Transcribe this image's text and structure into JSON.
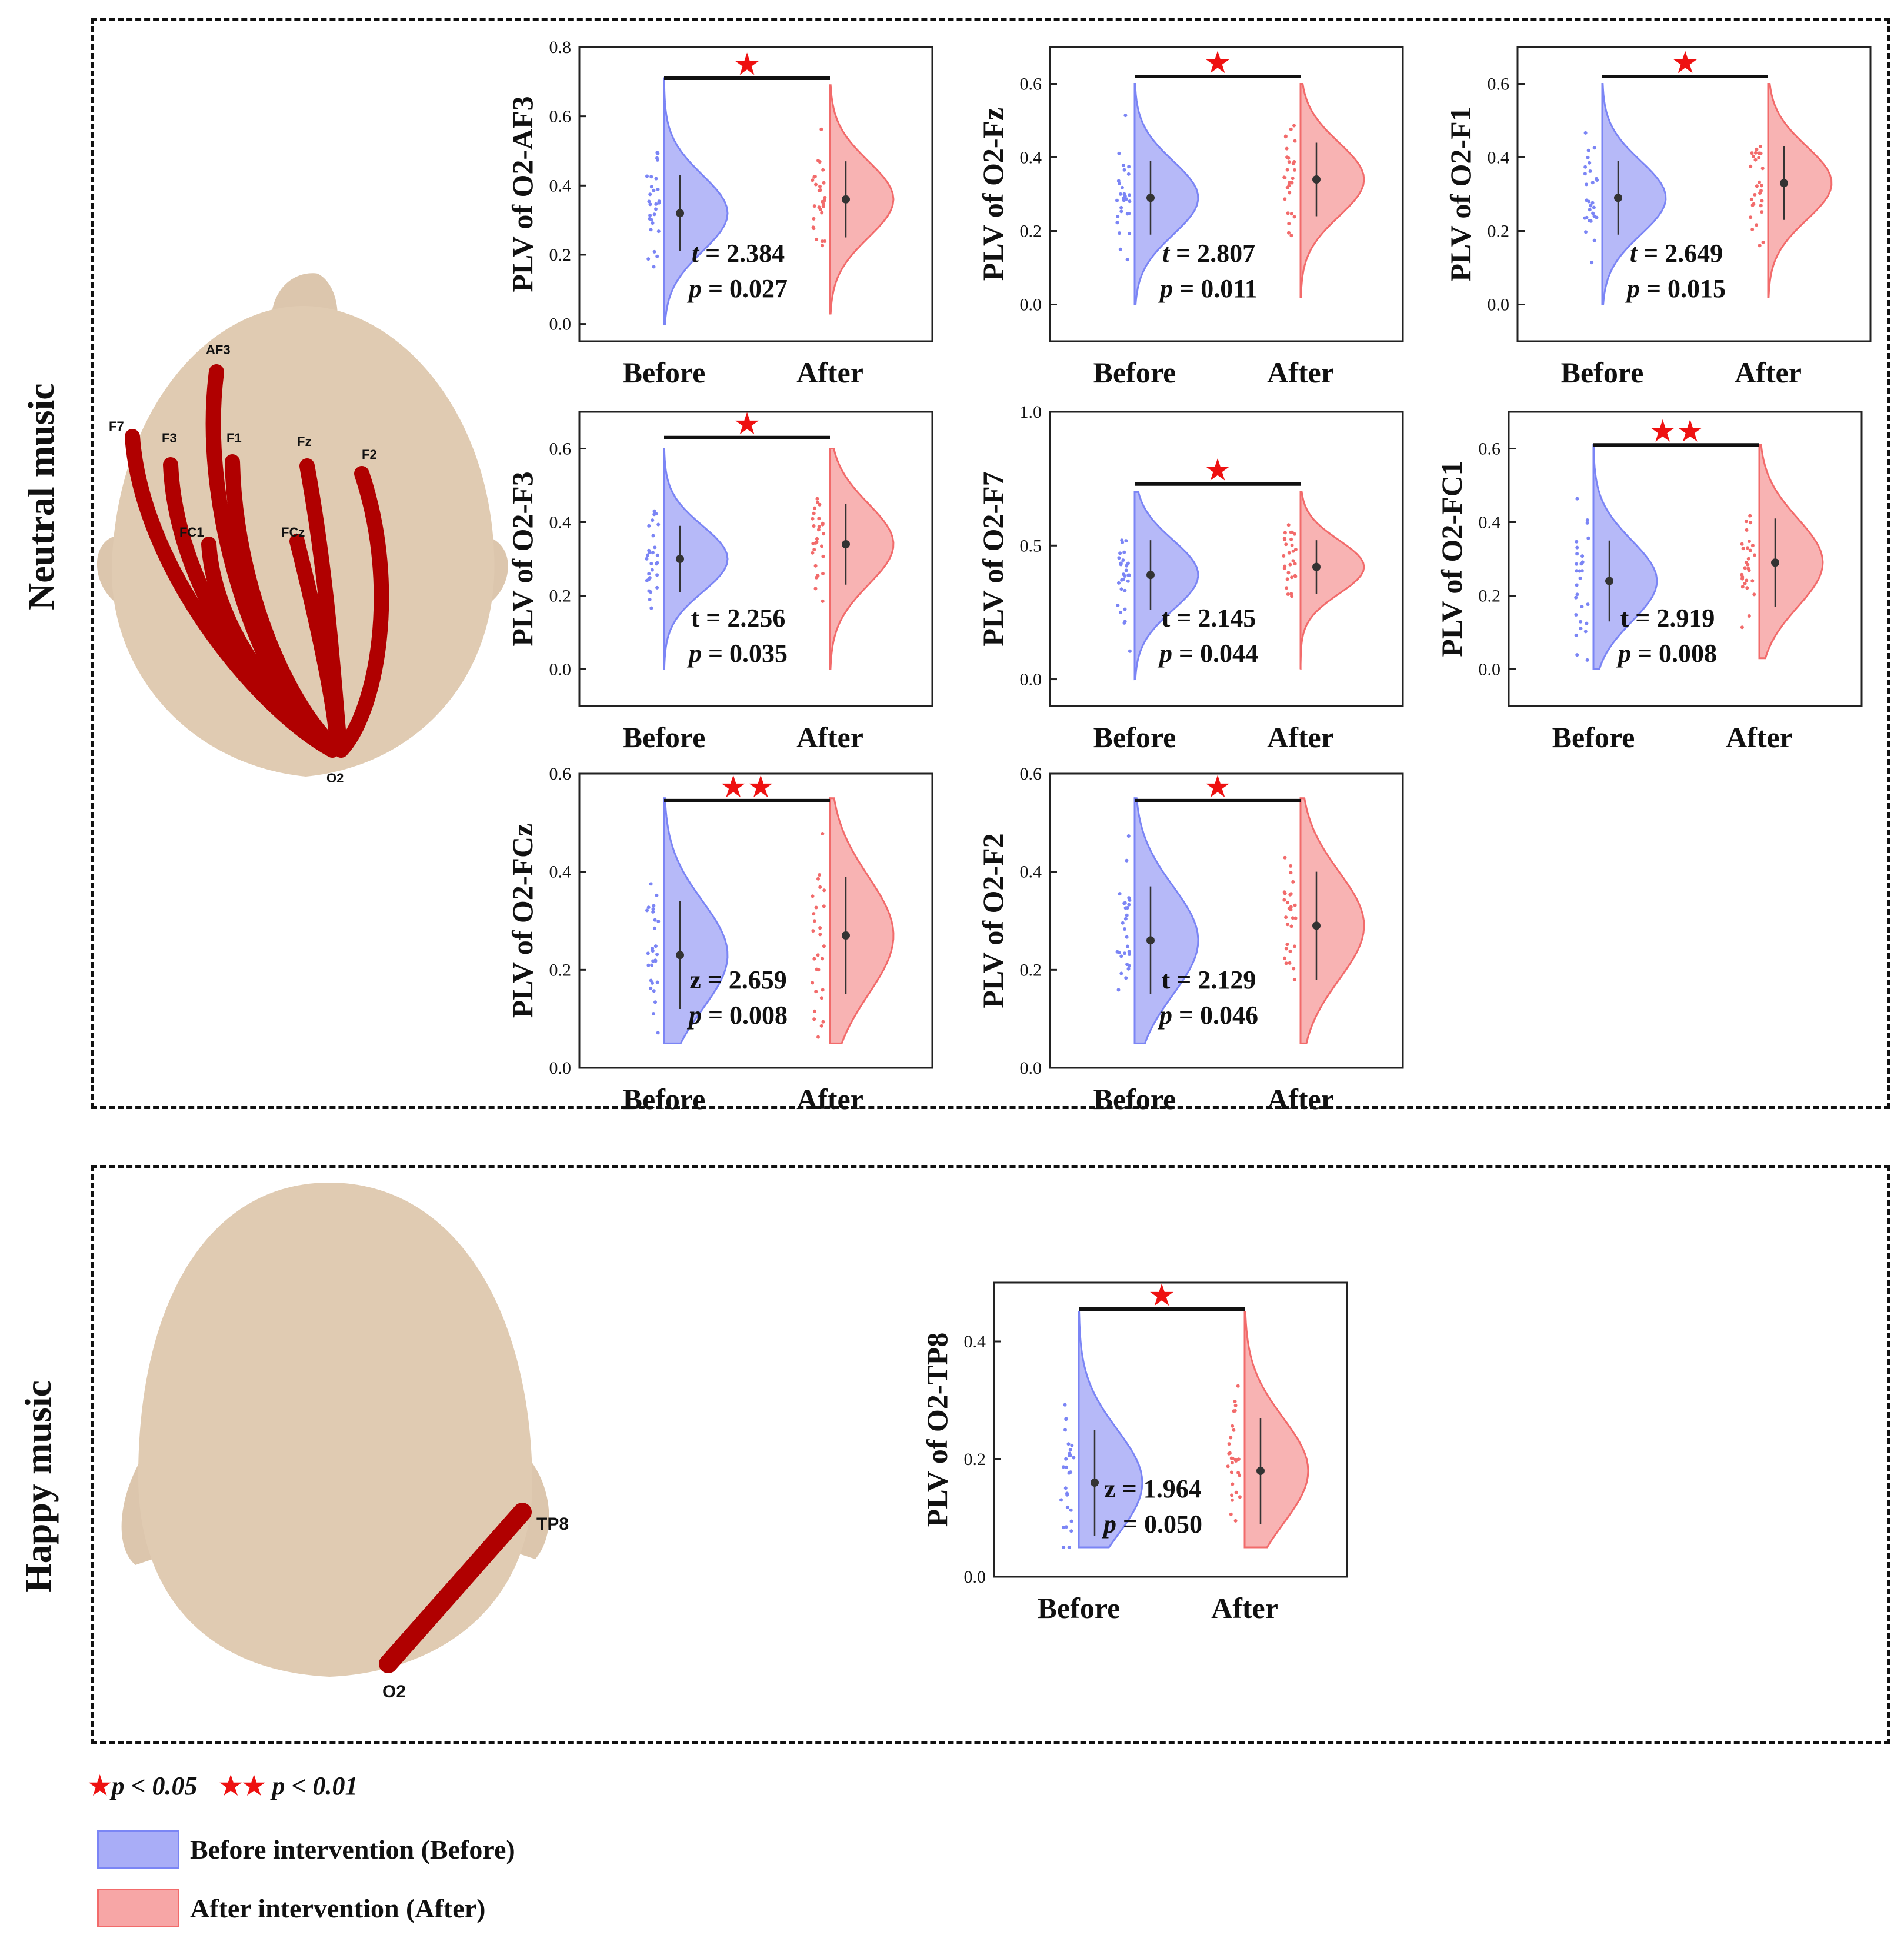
{
  "sections": [
    {
      "label": "Neutral music"
    },
    {
      "label": "Happy music"
    }
  ],
  "head_neutral": {
    "electrodes": [
      "AF3",
      "F7",
      "F3",
      "F1",
      "Fz",
      "F2",
      "FC1",
      "FCz",
      "O2"
    ]
  },
  "head_happy": {
    "electrodes": [
      "TP8",
      "O2"
    ]
  },
  "legend": {
    "sig1": "p < 0.05",
    "sig2": "p < 0.01",
    "before": "Before intervention (Before)",
    "after": "After intervention (After)"
  },
  "colors": {
    "before": "#7b85f5",
    "after": "#f26b6b",
    "star": "#ee1111"
  },
  "chart_data": [
    {
      "type": "half-violin",
      "ylabel": "PLV of O2-AF3",
      "categories": [
        "Before",
        "After"
      ],
      "ylim": [
        -0.05,
        0.8
      ],
      "yticks": [
        "0.0",
        "0.2",
        "0.4",
        "0.6",
        "0.8"
      ],
      "yticks_v": [
        0,
        0.2,
        0.4,
        0.6,
        0.8
      ],
      "before": {
        "mean": 0.32,
        "sd": 0.11,
        "min": 0.0,
        "max": 0.71
      },
      "after": {
        "mean": 0.36,
        "sd": 0.11,
        "min": 0.03,
        "max": 0.69
      },
      "stat_label": "t",
      "stat": "2.384",
      "p_label": "p",
      "p": "0.027",
      "sig": 1,
      "stars": "★",
      "sig_y": 0.71
    },
    {
      "type": "half-violin",
      "ylabel": "PLV of O2-Fz",
      "categories": [
        "Before",
        "After"
      ],
      "ylim": [
        -0.1,
        0.7
      ],
      "yticks": [
        "0.0",
        "0.2",
        "0.4",
        "0.6"
      ],
      "yticks_v": [
        0,
        0.2,
        0.4,
        0.6
      ],
      "before": {
        "mean": 0.29,
        "sd": 0.1,
        "min": 0.0,
        "max": 0.6
      },
      "after": {
        "mean": 0.34,
        "sd": 0.1,
        "min": 0.02,
        "max": 0.6
      },
      "stat_label": "t",
      "stat": "2.807",
      "p_label": "p",
      "p": "0.011",
      "sig": 1,
      "stars": "★",
      "sig_y": 0.62
    },
    {
      "type": "half-violin",
      "ylabel": "PLV of O2-F1",
      "categories": [
        "Before",
        "After"
      ],
      "ylim": [
        -0.1,
        0.7
      ],
      "yticks": [
        "0.0",
        "0.2",
        "0.4",
        "0.6"
      ],
      "yticks_v": [
        0,
        0.2,
        0.4,
        0.6
      ],
      "before": {
        "mean": 0.29,
        "sd": 0.1,
        "min": 0.0,
        "max": 0.6
      },
      "after": {
        "mean": 0.33,
        "sd": 0.1,
        "min": 0.02,
        "max": 0.6
      },
      "stat_label": "t",
      "stat": "2.649",
      "p_label": "p",
      "p": "0.015",
      "sig": 1,
      "stars": "★",
      "sig_y": 0.62
    },
    {
      "type": "half-violin",
      "ylabel": "PLV of O2-F3",
      "categories": [
        "Before",
        "After"
      ],
      "ylim": [
        -0.1,
        0.7
      ],
      "yticks": [
        "0.0",
        "0.2",
        "0.4",
        "0.6"
      ],
      "yticks_v": [
        0,
        0.2,
        0.4,
        0.6
      ],
      "before": {
        "mean": 0.3,
        "sd": 0.09,
        "min": 0.0,
        "max": 0.6
      },
      "after": {
        "mean": 0.34,
        "sd": 0.11,
        "min": 0.0,
        "max": 0.6
      },
      "stat_label": "t",
      "stat": "2.256",
      "p_label": "p",
      "p": "0.035",
      "sig": 1,
      "stars": "★",
      "sig_y": 0.63
    },
    {
      "type": "half-violin",
      "ylabel": "PLV of O2-F7",
      "categories": [
        "Before",
        "After"
      ],
      "ylim": [
        -0.1,
        1.0
      ],
      "yticks": [
        "0.0",
        "0.5",
        "1.0"
      ],
      "yticks_v": [
        0,
        0.5,
        1.0
      ],
      "before": {
        "mean": 0.39,
        "sd": 0.13,
        "min": 0.0,
        "max": 0.7
      },
      "after": {
        "mean": 0.42,
        "sd": 0.1,
        "min": 0.04,
        "max": 0.7
      },
      "stat_label": "t",
      "stat": "2.145",
      "p_label": "p",
      "p": "0.044",
      "sig": 1,
      "stars": "★",
      "sig_y": 0.73
    },
    {
      "type": "half-violin",
      "ylabel": "PLV of O2-FC1",
      "categories": [
        "Before",
        "After"
      ],
      "ylim": [
        -0.1,
        0.7
      ],
      "yticks": [
        "0.0",
        "0.2",
        "0.4",
        "0.6"
      ],
      "yticks_v": [
        0,
        0.2,
        0.4,
        0.6
      ],
      "before": {
        "mean": 0.24,
        "sd": 0.11,
        "min": 0.0,
        "max": 0.61
      },
      "after": {
        "mean": 0.29,
        "sd": 0.12,
        "min": 0.03,
        "max": 0.61
      },
      "stat_label": "t",
      "stat": "2.919",
      "p_label": "p",
      "p": "0.008",
      "sig": 2,
      "stars": "★★",
      "sig_y": 0.61
    },
    {
      "type": "half-violin",
      "ylabel": "PLV of O2-FCz",
      "categories": [
        "Before",
        "After"
      ],
      "ylim": [
        0.0,
        0.6
      ],
      "yticks": [
        "0.0",
        "0.2",
        "0.4",
        "0.6"
      ],
      "yticks_v": [
        0,
        0.2,
        0.4,
        0.6
      ],
      "before": {
        "mean": 0.23,
        "sd": 0.11,
        "min": 0.05,
        "max": 0.55
      },
      "after": {
        "mean": 0.27,
        "sd": 0.12,
        "min": 0.05,
        "max": 0.55
      },
      "stat_label": "z",
      "stat": "2.659",
      "p_label": "p",
      "p": "0.008",
      "sig": 2,
      "stars": "★★",
      "sig_y": 0.545
    },
    {
      "type": "half-violin",
      "ylabel": "PLV of O2-F2",
      "categories": [
        "Before",
        "After"
      ],
      "ylim": [
        0.0,
        0.6
      ],
      "yticks": [
        "0.0",
        "0.2",
        "0.4",
        "0.6"
      ],
      "yticks_v": [
        0,
        0.2,
        0.4,
        0.6
      ],
      "before": {
        "mean": 0.26,
        "sd": 0.11,
        "min": 0.05,
        "max": 0.55
      },
      "after": {
        "mean": 0.29,
        "sd": 0.11,
        "min": 0.05,
        "max": 0.55
      },
      "stat_label": "t",
      "stat": "2.129",
      "p_label": "p",
      "p": "0.046",
      "sig": 1,
      "stars": "★",
      "sig_y": 0.545
    },
    {
      "type": "half-violin",
      "ylabel": "PLV of O2-TP8",
      "categories": [
        "Before",
        "After"
      ],
      "ylim": [
        0.0,
        0.5
      ],
      "yticks": [
        "0.0",
        "0.2",
        "0.4"
      ],
      "yticks_v": [
        0,
        0.2,
        0.4
      ],
      "before": {
        "mean": 0.16,
        "sd": 0.09,
        "min": 0.05,
        "max": 0.45
      },
      "after": {
        "mean": 0.18,
        "sd": 0.09,
        "min": 0.05,
        "max": 0.45
      },
      "stat_label": "z",
      "stat": "1.964",
      "p_label": "p",
      "p": "0.050",
      "sig": 1,
      "stars": "★",
      "sig_y": 0.455
    }
  ]
}
